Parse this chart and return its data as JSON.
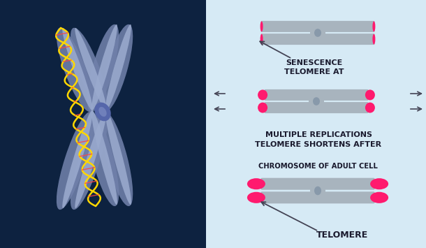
{
  "bg_left": "#0d2240",
  "bg_right": "#d6eaf5",
  "chromosome_color": "#a8b4be",
  "telomere_color": "#ff1a6e",
  "arrow_color": "#444455",
  "text_color": "#1a1a2e",
  "title1": "TELOMERE",
  "title2": "CHROMOSOME OF ADULT CELL",
  "title3_line1": "TELOMERE SHORTENS AFTER",
  "title3_line2": "MULTIPLE REPLICATIONS",
  "title4_line1": "TELOMERE AT",
  "title4_line2": "SENESCENCE",
  "chrom_color": "#8899bb",
  "dna_color": "#FFD700",
  "dna_cross_color": "#FF4444"
}
